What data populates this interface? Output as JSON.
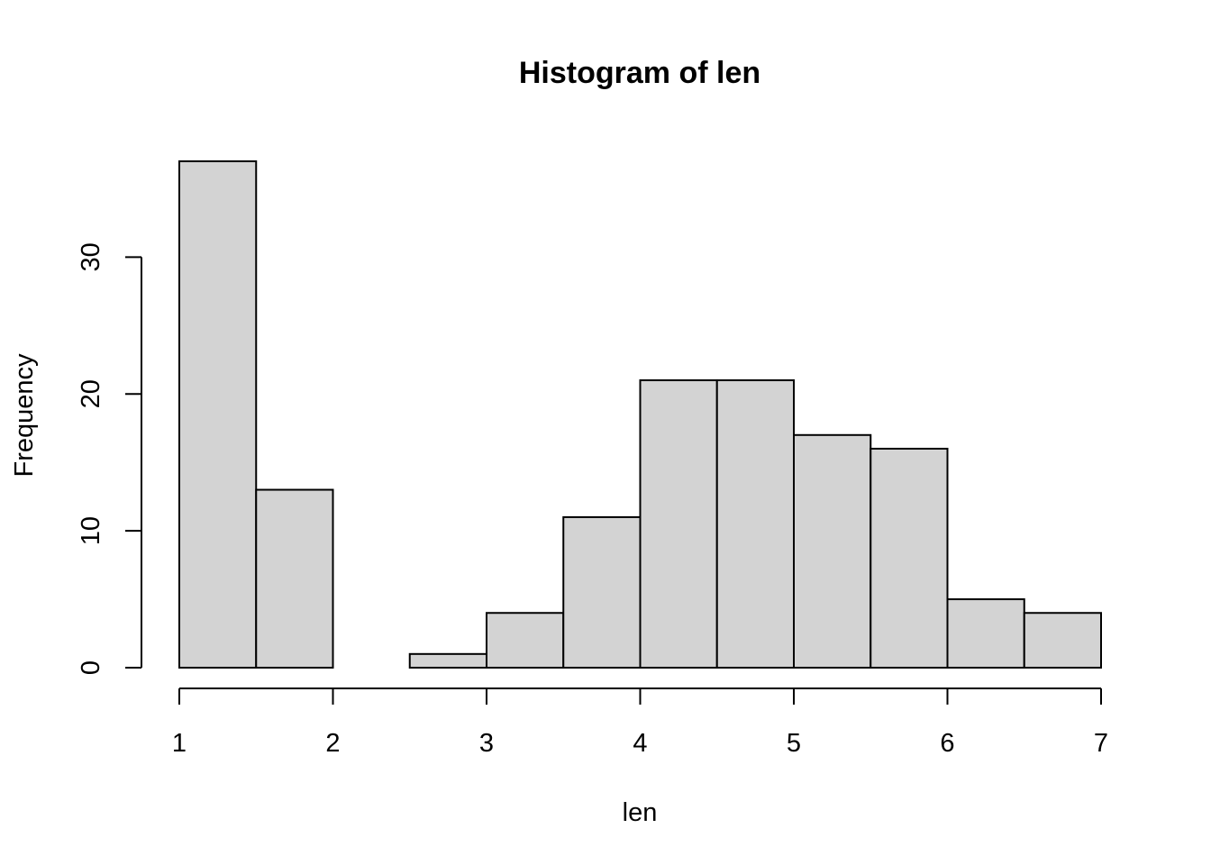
{
  "chart_data": {
    "type": "bar",
    "title": "Histogram of len",
    "xlabel": "len",
    "ylabel": "Frequency",
    "bin_edges": [
      1,
      1.5,
      2,
      2.5,
      3,
      3.5,
      4,
      4.5,
      5,
      5.5,
      6,
      6.5,
      7
    ],
    "values": [
      37,
      13,
      0,
      1,
      4,
      11,
      21,
      21,
      17,
      16,
      5,
      4
    ],
    "xlim": [
      1,
      7
    ],
    "ylim": [
      0,
      37
    ],
    "x_ticks": [
      1,
      2,
      3,
      4,
      5,
      6,
      7
    ],
    "x_tick_labels": [
      "1",
      "2",
      "3",
      "4",
      "5",
      "6",
      "7"
    ],
    "y_ticks": [
      0,
      10,
      20,
      30
    ],
    "y_tick_labels": [
      "0",
      "10",
      "20",
      "30"
    ],
    "grid": false,
    "legend": "none",
    "bar_color": "#d3d3d3",
    "edge_color": "#000000"
  }
}
